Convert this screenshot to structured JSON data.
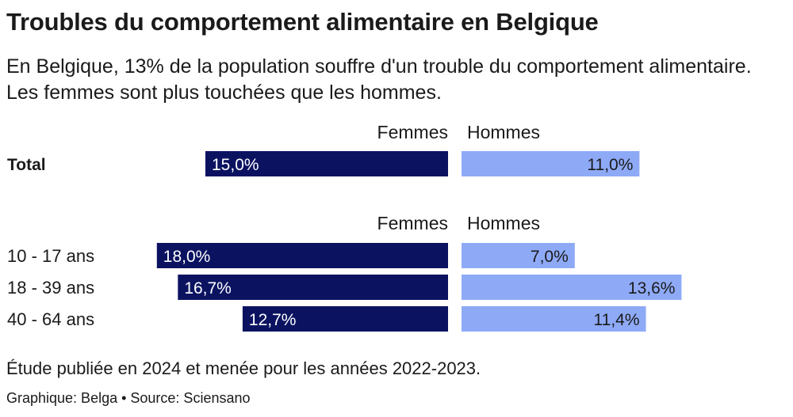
{
  "header": {
    "title": "Troubles du comportement alimentaire en Belgique",
    "subtitle": "En Belgique, 13% de la population souffre d'un trouble du comportement alimentaire. Les femmes sont plus touchées que les hommes."
  },
  "footer": {
    "note": "Étude publiée en 2024 et menée pour les années 2022-2023.",
    "source": "Graphique: Belga • Source: Sciensano"
  },
  "colors": {
    "femmes": "#0b1361",
    "hommes": "#8eaaf7",
    "text": "#1a1a1a"
  },
  "chart_data": {
    "type": "bar",
    "orientation": "horizontal-diverging",
    "unit": "%",
    "series": [
      {
        "name": "Femmes",
        "color": "#0b1361"
      },
      {
        "name": "Hommes",
        "color": "#8eaaf7"
      }
    ],
    "groups": [
      {
        "rows": [
          {
            "label": "Total",
            "bold": true,
            "femmes": 15.0,
            "hommes": 11.0,
            "femmes_label": "15,0%",
            "hommes_label": "11,0%"
          }
        ]
      },
      {
        "rows": [
          {
            "label": "10 - 17 ans",
            "bold": false,
            "femmes": 18.0,
            "hommes": 7.0,
            "femmes_label": "18,0%",
            "hommes_label": "7,0%"
          },
          {
            "label": "18 - 39 ans",
            "bold": false,
            "femmes": 16.7,
            "hommes": 13.6,
            "femmes_label": "16,7%",
            "hommes_label": "13,6%"
          },
          {
            "label": "40 - 64 ans",
            "bold": false,
            "femmes": 12.7,
            "hommes": 11.4,
            "femmes_label": "12,7%",
            "hommes_label": "11,4%"
          }
        ]
      }
    ]
  }
}
